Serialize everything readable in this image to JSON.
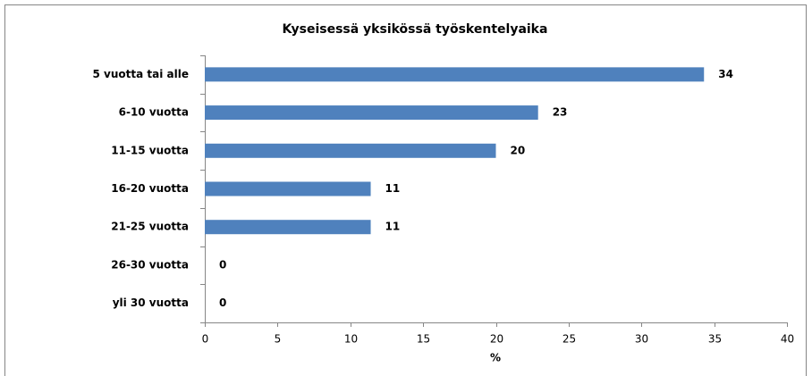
{
  "chart_data": {
    "type": "bar",
    "orientation": "horizontal",
    "title": "Kyseisessä yksikössä työskentelyaika",
    "categories": [
      "5 vuotta tai alle",
      "6-10 vuotta",
      "11-15 vuotta",
      "16-20 vuotta",
      "21-25 vuotta",
      "26-30 vuotta",
      "yli 30 vuotta"
    ],
    "values": [
      34.3,
      22.9,
      20.0,
      11.4,
      11.4,
      0,
      0
    ],
    "value_labels": [
      "34",
      "23",
      "20",
      "11",
      "11",
      "0",
      "0"
    ],
    "color": "#4f81bd",
    "xlabel": "%",
    "xlim": [
      0,
      40
    ],
    "xticks": [
      0,
      5,
      10,
      15,
      20,
      25,
      30,
      35,
      40
    ]
  }
}
